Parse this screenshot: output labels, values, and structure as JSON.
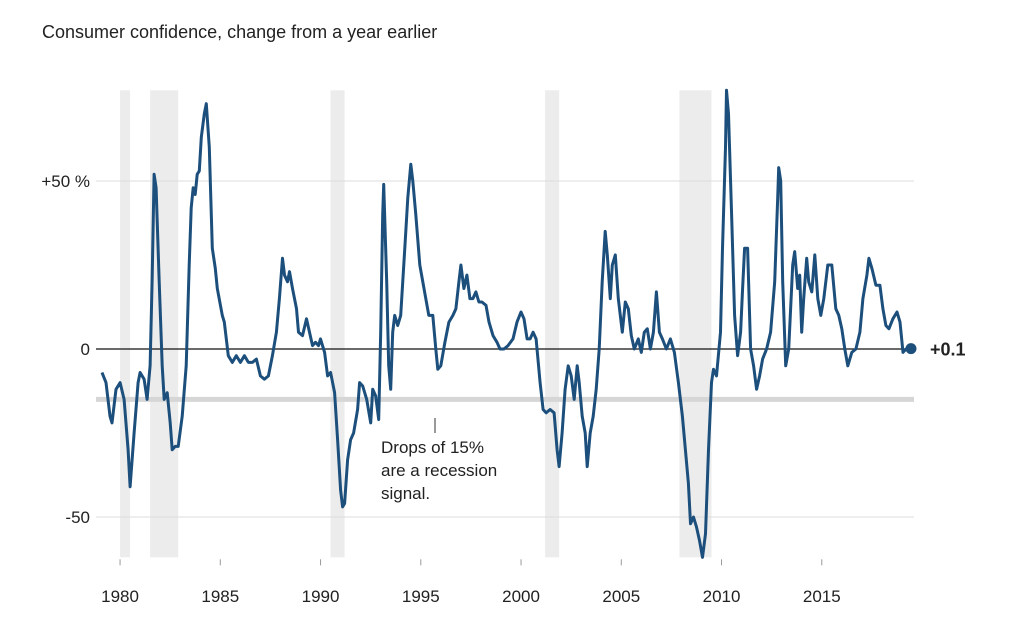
{
  "chart_data": {
    "type": "line",
    "title": "Consumer confidence, change from a year earlier",
    "color": "#1d4f7c",
    "x": [
      1979.1,
      1979.3,
      1979.5,
      1979.6,
      1979.8,
      1980.0,
      1980.2,
      1980.4,
      1980.5,
      1980.7,
      1980.9,
      1981.0,
      1981.2,
      1981.35,
      1981.5,
      1981.6,
      1981.7,
      1981.8,
      1981.95,
      1982.1,
      1982.2,
      1982.35,
      1982.5,
      1982.6,
      1982.75,
      1982.9,
      1983.1,
      1983.3,
      1983.45,
      1983.55,
      1983.65,
      1983.75,
      1983.85,
      1983.95,
      1984.05,
      1984.2,
      1984.3,
      1984.45,
      1984.6,
      1984.75,
      1984.85,
      1985.1,
      1985.2,
      1985.4,
      1985.6,
      1985.8,
      1986.0,
      1986.2,
      1986.4,
      1986.6,
      1986.8,
      1987.0,
      1987.2,
      1987.4,
      1987.6,
      1987.8,
      1987.95,
      1988.1,
      1988.2,
      1988.35,
      1988.45,
      1988.6,
      1988.8,
      1988.9,
      1989.1,
      1989.3,
      1989.45,
      1989.6,
      1989.75,
      1989.9,
      1990.0,
      1990.2,
      1990.35,
      1990.5,
      1990.7,
      1990.85,
      1991.0,
      1991.1,
      1991.2,
      1991.35,
      1991.5,
      1991.65,
      1991.85,
      1991.95,
      1992.1,
      1992.3,
      1992.5,
      1992.6,
      1992.75,
      1992.9,
      1993.0,
      1993.1,
      1993.15,
      1993.3,
      1993.4,
      1993.5,
      1993.6,
      1993.7,
      1993.85,
      1994.0,
      1994.2,
      1994.35,
      1994.5,
      1994.6,
      1994.75,
      1994.95,
      1995.1,
      1995.25,
      1995.4,
      1995.6,
      1995.75,
      1995.85,
      1996.0,
      1996.2,
      1996.4,
      1996.6,
      1996.75,
      1996.9,
      1997.0,
      1997.15,
      1997.3,
      1997.45,
      1997.6,
      1997.75,
      1997.9,
      1998.05,
      1998.25,
      1998.4,
      1998.6,
      1998.8,
      1998.95,
      1999.15,
      1999.35,
      1999.6,
      1999.8,
      2000.0,
      2000.15,
      2000.3,
      2000.45,
      2000.6,
      2000.75,
      2000.95,
      2001.1,
      2001.25,
      2001.45,
      2001.65,
      2001.8,
      2001.9,
      2002.05,
      2002.2,
      2002.35,
      2002.5,
      2002.65,
      2002.8,
      2002.9,
      2003.05,
      2003.2,
      2003.3,
      2003.45,
      2003.6,
      2003.75,
      2003.9,
      2004.05,
      2004.2,
      2004.3,
      2004.45,
      2004.55,
      2004.7,
      2004.85,
      2005.05,
      2005.2,
      2005.35,
      2005.5,
      2005.65,
      2005.85,
      2006.0,
      2006.15,
      2006.3,
      2006.45,
      2006.6,
      2006.75,
      2006.9,
      2007.05,
      2007.25,
      2007.45,
      2007.65,
      2007.85,
      2008.05,
      2008.2,
      2008.35,
      2008.45,
      2008.6,
      2008.75,
      2008.9,
      2009.05,
      2009.2,
      2009.35,
      2009.5,
      2009.6,
      2009.75,
      2009.95,
      2010.05,
      2010.2,
      2010.25,
      2010.35,
      2010.5,
      2010.65,
      2010.8,
      2010.95,
      2011.05,
      2011.15,
      2011.3,
      2011.45,
      2011.6,
      2011.75,
      2011.9,
      2012.05,
      2012.25,
      2012.45,
      2012.65,
      2012.8,
      2012.85,
      2012.95,
      2013.05,
      2013.2,
      2013.35,
      2013.55,
      2013.65,
      2013.8,
      2013.9,
      2014.0,
      2014.1,
      2014.25,
      2014.35,
      2014.5,
      2014.65,
      2014.8,
      2014.95,
      2015.1,
      2015.3,
      2015.5,
      2015.7,
      2015.85,
      2016.0,
      2016.15,
      2016.3,
      2016.5,
      2016.7,
      2016.9,
      2017.05,
      2017.25,
      2017.35,
      2017.5,
      2017.7,
      2017.9,
      2018.05,
      2018.2,
      2018.35,
      2018.55,
      2018.75,
      2018.9,
      2019.05,
      2019.2,
      2019.45
    ],
    "values": [
      -7,
      -10,
      -20,
      -22,
      -12,
      -10,
      -15,
      -30,
      -41,
      -25,
      -10,
      -7,
      -9,
      -15,
      -5,
      20,
      52,
      48,
      20,
      -5,
      -15,
      -13,
      -22,
      -30,
      -29,
      -29,
      -20,
      -5,
      25,
      42,
      48,
      46,
      52,
      53,
      63,
      70,
      73,
      60,
      30,
      24,
      18,
      10,
      8,
      -2,
      -4,
      -2,
      -4,
      -2,
      -4,
      -4,
      -3,
      -8,
      -9,
      -8,
      -2,
      5,
      15,
      27,
      22,
      20,
      23,
      18,
      12,
      5,
      4,
      9,
      5,
      1,
      2,
      1,
      3,
      -1,
      -8,
      -7,
      -13,
      -27,
      -42,
      -47,
      -46,
      -33,
      -27,
      -25,
      -18,
      -10,
      -11,
      -15,
      -22,
      -12,
      -14,
      -21,
      5,
      40,
      49,
      20,
      -5,
      -12,
      5,
      10,
      7,
      10,
      30,
      45,
      55,
      50,
      40,
      25,
      20,
      15,
      10,
      10,
      0,
      -6,
      -5,
      2,
      8,
      10,
      12,
      20,
      25,
      18,
      22,
      15,
      15,
      17,
      14,
      14,
      13,
      8,
      4,
      2,
      0,
      0,
      1,
      3,
      8,
      11,
      9,
      3,
      3,
      5,
      3,
      -10,
      -18,
      -19,
      -18,
      -19,
      -30,
      -35,
      -25,
      -12,
      -5,
      -8,
      -15,
      -5,
      -10,
      -20,
      -25,
      -35,
      -25,
      -20,
      -12,
      0,
      20,
      35,
      28,
      15,
      25,
      28,
      15,
      5,
      14,
      12,
      4,
      0,
      3,
      -1,
      5,
      6,
      0,
      5,
      17,
      5,
      3,
      0,
      3,
      -1,
      -10,
      -20,
      -30,
      -40,
      -52,
      -50,
      -53,
      -57,
      -62,
      -55,
      -30,
      -10,
      -6,
      -8,
      5,
      30,
      60,
      77,
      70,
      40,
      10,
      -2,
      5,
      18,
      30,
      30,
      0,
      -5,
      -12,
      -8,
      -3,
      0,
      5,
      20,
      45,
      54,
      50,
      20,
      -5,
      0,
      25,
      29,
      18,
      22,
      5,
      15,
      27,
      20,
      17,
      28,
      15,
      10,
      15,
      25,
      25,
      12,
      10,
      6,
      0,
      -5,
      -1,
      0,
      5,
      15,
      22,
      27,
      24,
      19,
      19,
      12,
      7,
      6,
      9,
      11,
      8,
      -1,
      0,
      0.1
    ],
    "end_label": "+0.1",
    "recessions": [
      [
        1980.0,
        1980.5
      ],
      [
        1981.5,
        1982.9
      ],
      [
        1990.5,
        1991.2
      ],
      [
        2001.2,
        2001.9
      ],
      [
        2007.9,
        2009.5
      ]
    ],
    "threshold": -15,
    "annotation": [
      "Drops of 15%",
      "are a recession",
      "signal."
    ],
    "xlim": [
      1978.8,
      2019.6
    ],
    "xticks": [
      1980,
      1985,
      1990,
      1995,
      2000,
      2005,
      2010,
      2015
    ],
    "ylim": [
      -62,
      77
    ],
    "yticks": [
      -50,
      0,
      {
        "value": 50,
        "label": "+50 %"
      }
    ],
    "grid": true
  }
}
